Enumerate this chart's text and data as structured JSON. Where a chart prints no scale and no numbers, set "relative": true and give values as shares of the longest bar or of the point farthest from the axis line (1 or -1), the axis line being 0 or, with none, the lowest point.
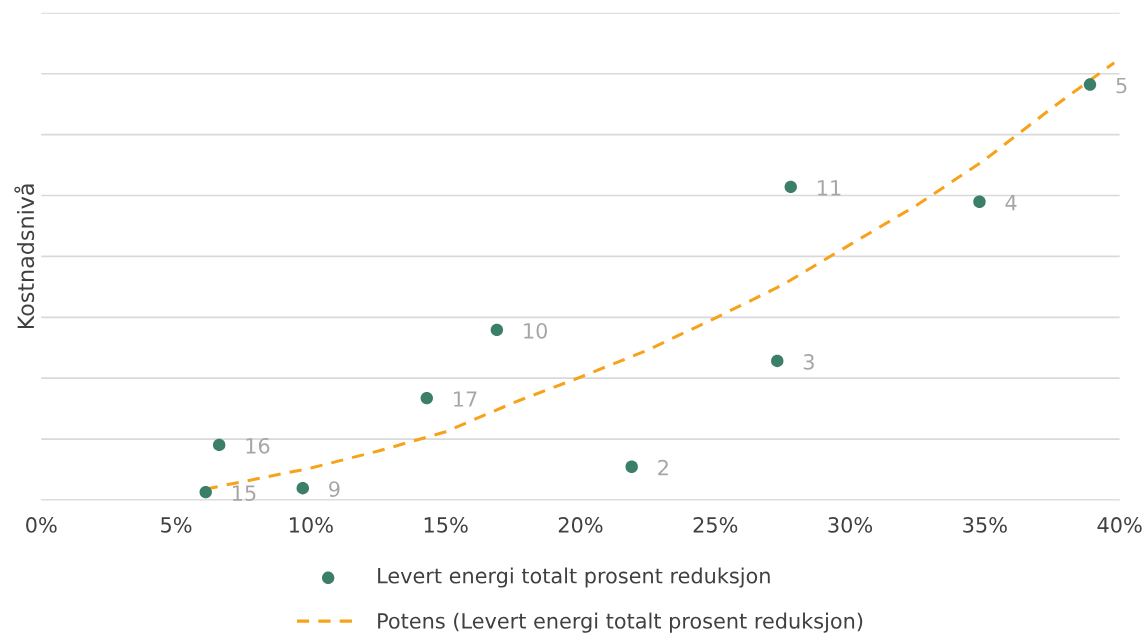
{
  "chart_data": {
    "type": "scatter",
    "relative": true,
    "ylabel": "Kostnadsnivå",
    "xlim": [
      0,
      40
    ],
    "xticks": [
      {
        "value": 0,
        "label": "0%"
      },
      {
        "value": 5,
        "label": "5%"
      },
      {
        "value": 10,
        "label": "10%"
      },
      {
        "value": 15,
        "label": "15%"
      },
      {
        "value": 20,
        "label": "20%"
      },
      {
        "value": 25,
        "label": "25%"
      },
      {
        "value": 30,
        "label": "30%"
      },
      {
        "value": 35,
        "label": "35%"
      },
      {
        "value": 40,
        "label": "40%"
      }
    ],
    "grid": "y",
    "legend": "bottom",
    "series": [
      {
        "name": "Levert energi totalt prosent reduksjon",
        "color": "#3b7f68",
        "marker": "circle",
        "x": [
          6.1,
          6.6,
          9.7,
          14.3,
          16.9,
          21.9,
          27.3,
          27.8,
          34.8,
          38.9
        ],
        "values": [
          0.018,
          0.126,
          0.027,
          0.233,
          0.389,
          0.076,
          0.318,
          0.716,
          0.682,
          0.95
        ]
      },
      {
        "name": "Potens (Levert energi totalt prosent reduksjon)",
        "type": "line",
        "color": "#f7a21b",
        "line_style": "dashed",
        "x": [
          6.1,
          10,
          12.5,
          15,
          17.5,
          20,
          22.5,
          25,
          27.5,
          30,
          32.5,
          35,
          37.5,
          39.8
        ],
        "values": [
          0.025,
          0.073,
          0.112,
          0.156,
          0.222,
          0.281,
          0.343,
          0.416,
          0.492,
          0.584,
          0.675,
          0.778,
          0.897,
          1.0
        ]
      }
    ],
    "annotations": [
      {
        "text": "15",
        "x": 6.1,
        "y": 0.018
      },
      {
        "text": "16",
        "x": 6.6,
        "y": 0.126
      },
      {
        "text": "9",
        "x": 9.7,
        "y": 0.027
      },
      {
        "text": "17",
        "x": 14.3,
        "y": 0.233
      },
      {
        "text": "10",
        "x": 16.9,
        "y": 0.389
      },
      {
        "text": "2",
        "x": 21.9,
        "y": 0.076
      },
      {
        "text": "3",
        "x": 27.3,
        "y": 0.318
      },
      {
        "text": "11",
        "x": 27.8,
        "y": 0.716
      },
      {
        "text": "4",
        "x": 34.8,
        "y": 0.682
      },
      {
        "text": "5",
        "x": 38.9,
        "y": 0.95
      }
    ]
  }
}
